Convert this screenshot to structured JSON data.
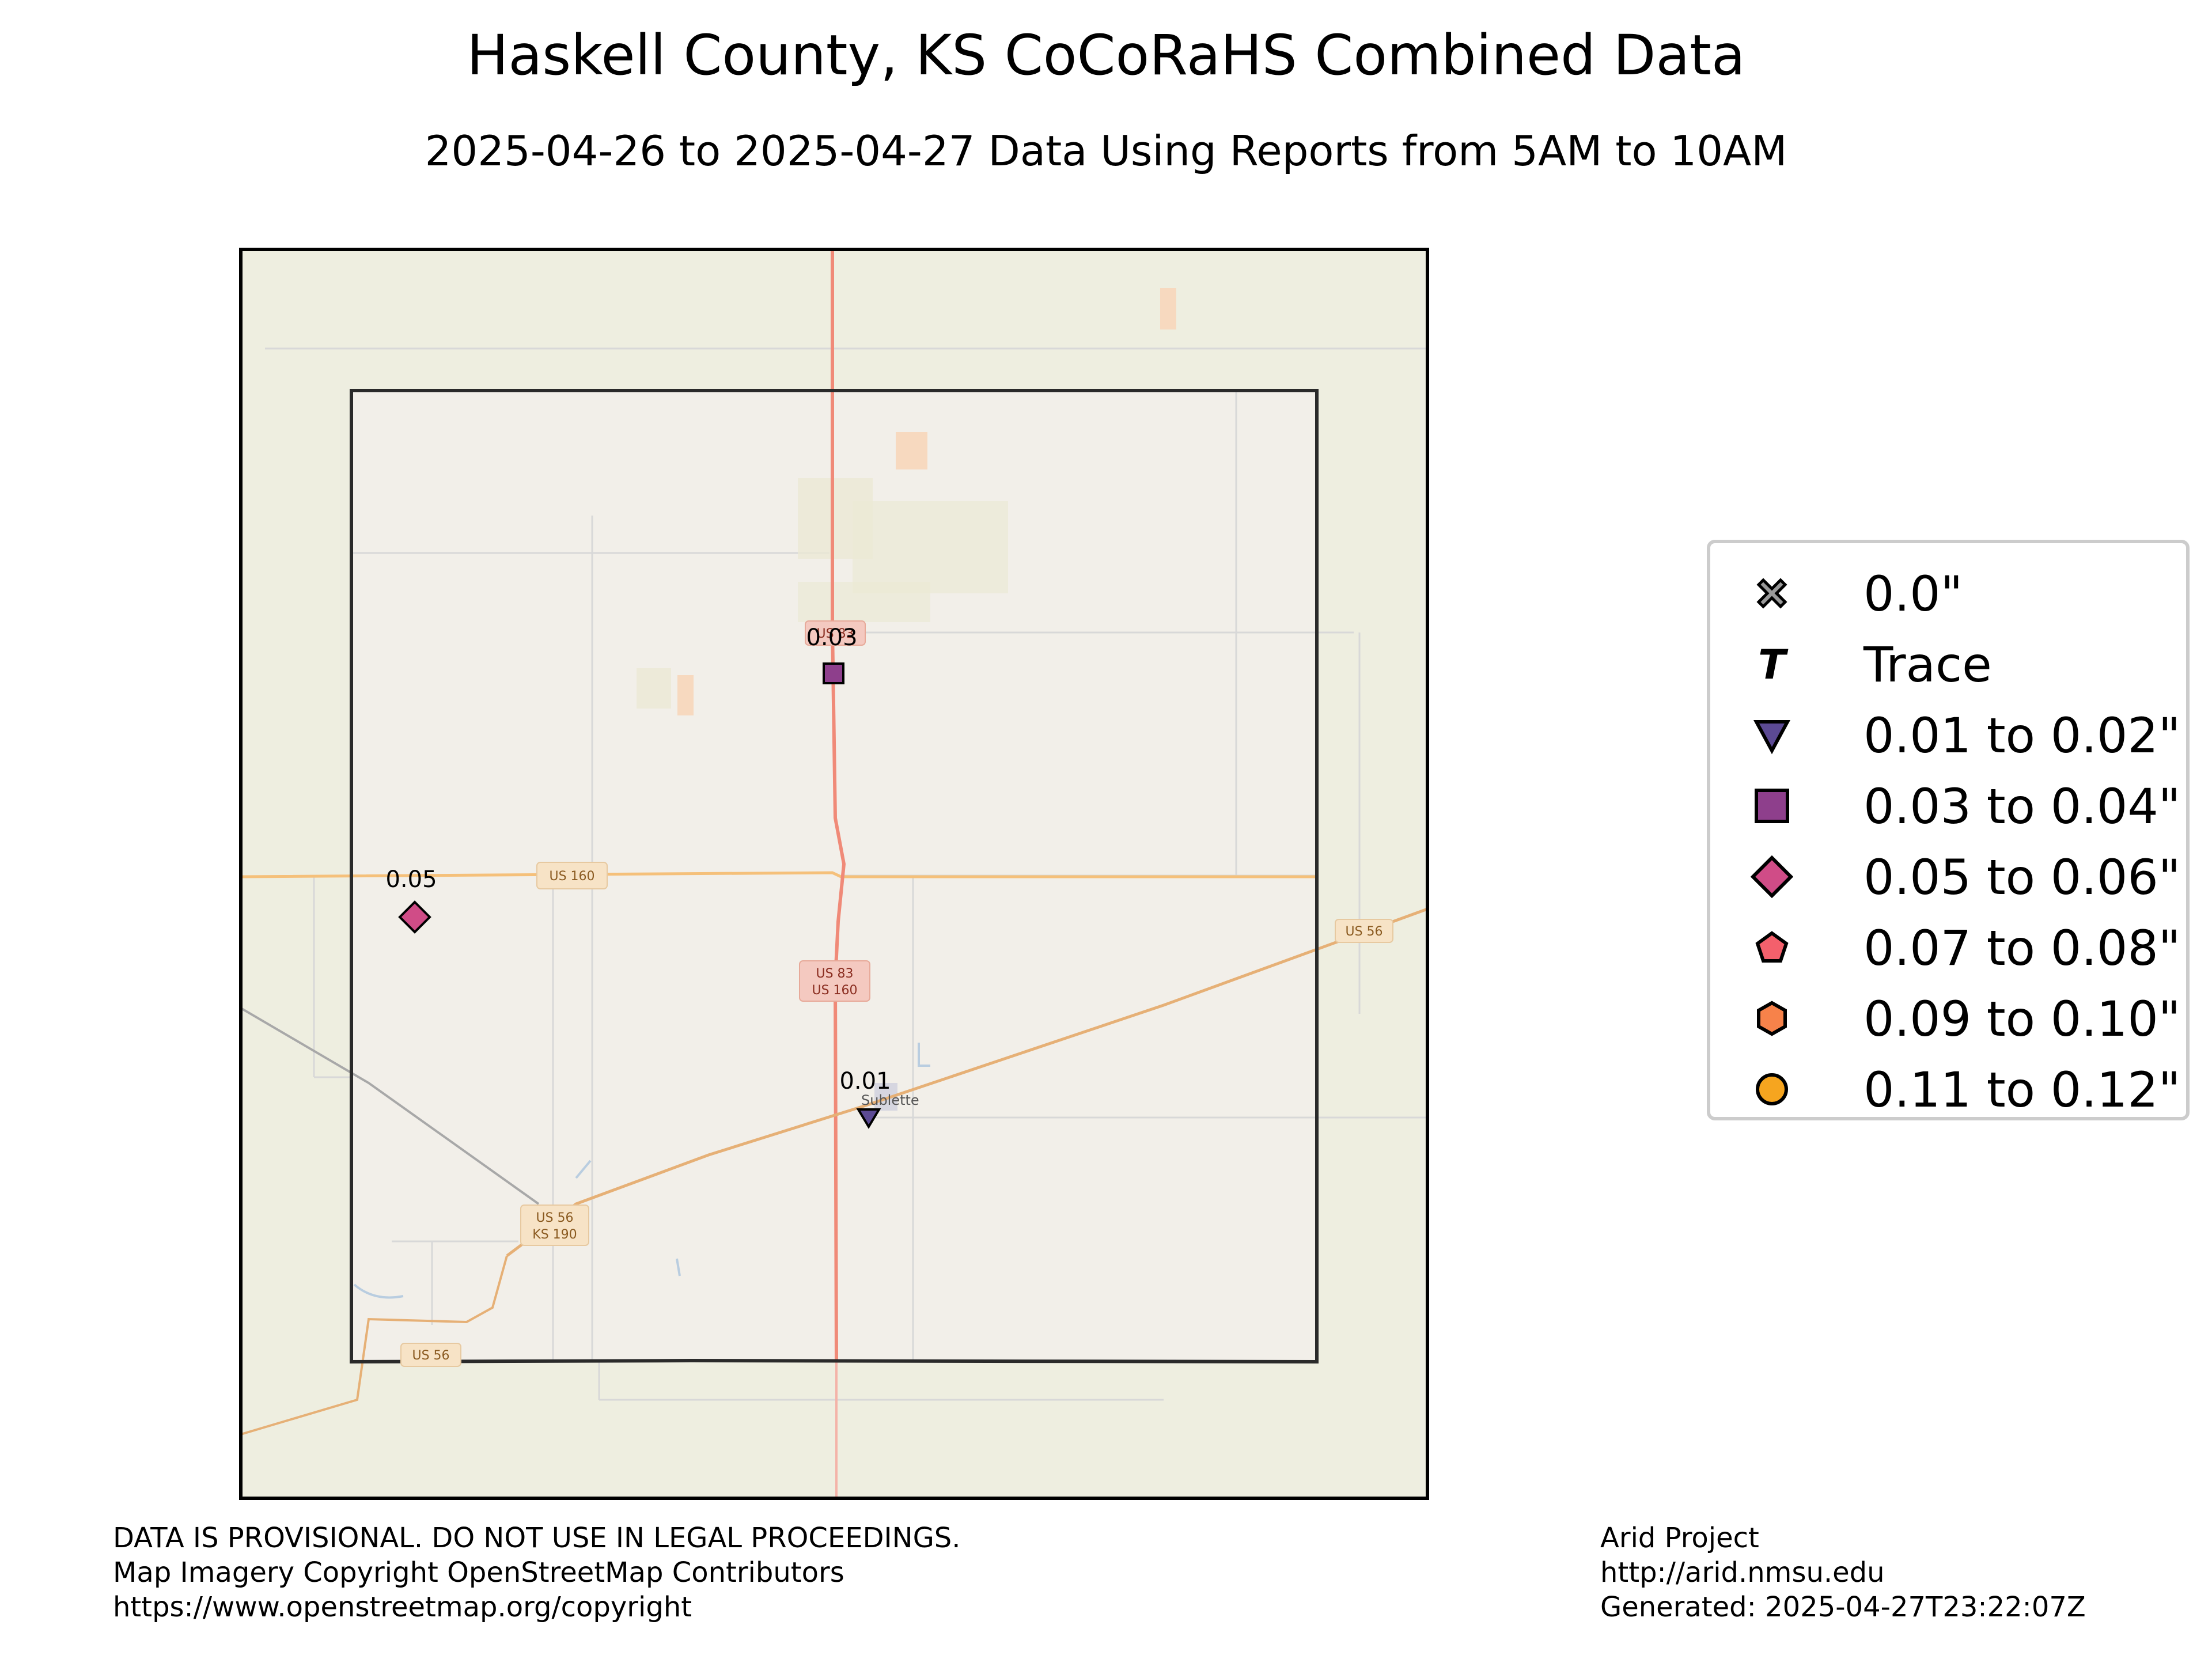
{
  "title": "Haskell County, KS CoCoRaHS Combined Data",
  "subtitle": "2025-04-26 to 2025-04-27 Data Using Reports from 5AM to 10AM",
  "map": {
    "roads": {
      "us160_west": "US 160",
      "us83_line1": "US 83",
      "us83_line2": "US 160",
      "us56_east": "US 56",
      "us56_ks190_line1": "US 56",
      "us56_ks190_line2": "KS 190",
      "us56_south": "US 56",
      "north_shield": "US 83"
    },
    "towns": {
      "sublette": "Sublette"
    },
    "stations": [
      {
        "value": "0.03",
        "symbol": "square-icon",
        "color": "#8e3f8c"
      },
      {
        "value": "0.05",
        "symbol": "diamond-icon",
        "color": "#d04c87"
      },
      {
        "value": "0.01",
        "symbol": "triangle-down-icon",
        "color": "#5c4a94"
      }
    ]
  },
  "legend": {
    "items": [
      {
        "label": "0.0\"",
        "symbol": "x-cross-icon",
        "color": "#9a9a9a"
      },
      {
        "label": "Trace",
        "symbol": "trace-t-icon",
        "color": "#000000"
      },
      {
        "label": "0.01 to 0.02\"",
        "symbol": "triangle-down-icon",
        "color": "#5c4a94"
      },
      {
        "label": "0.03 to 0.04\"",
        "symbol": "square-icon",
        "color": "#8e3f8c"
      },
      {
        "label": "0.05 to 0.06\"",
        "symbol": "diamond-icon",
        "color": "#d04c87"
      },
      {
        "label": "0.07 to 0.08\"",
        "symbol": "pentagon-icon",
        "color": "#f4606c"
      },
      {
        "label": "0.09 to 0.10\"",
        "symbol": "hexagon-icon",
        "color": "#f7824a"
      },
      {
        "label": "0.11 to 0.12\"",
        "symbol": "circle-icon",
        "color": "#f6a51f"
      }
    ]
  },
  "footer": {
    "left_line1": "DATA IS PROVISIONAL. DO NOT USE IN LEGAL PROCEEDINGS.",
    "left_line2": "Map Imagery Copyright OpenStreetMap Contributors",
    "left_line3": "https://www.openstreetmap.org/copyright",
    "right_line1": "Arid Project",
    "right_line2": "http://arid.nmsu.edu",
    "right_line3": "Generated: 2025-04-27T23:22:07Z"
  }
}
